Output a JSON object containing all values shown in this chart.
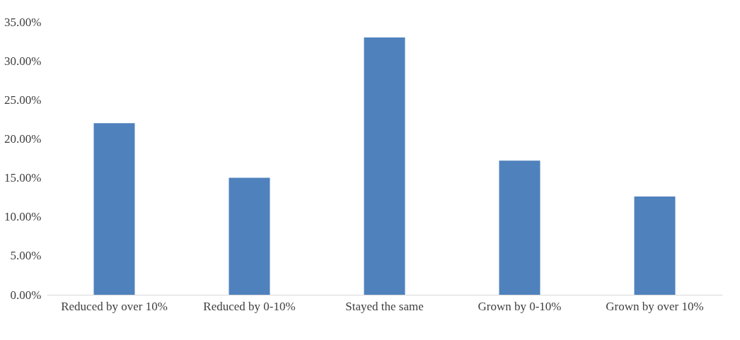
{
  "chart_data": {
    "type": "bar",
    "categories": [
      "Reduced by over 10%",
      "Reduced by 0-10%",
      "Stayed the same",
      "Grown by 0-10%",
      "Grown by over 10%"
    ],
    "values": [
      22.0,
      15.0,
      33.0,
      17.2,
      12.6
    ],
    "color": "#4f81bd",
    "ylim": [
      0,
      35
    ],
    "yticks": [
      {
        "value": 0,
        "label": "0.00%"
      },
      {
        "value": 5,
        "label": "5.00%"
      },
      {
        "value": 10,
        "label": "10.00%"
      },
      {
        "value": 15,
        "label": "15.00%"
      },
      {
        "value": 20,
        "label": "20.00%"
      },
      {
        "value": 25,
        "label": "25.00%"
      },
      {
        "value": 30,
        "label": "30.00%"
      },
      {
        "value": 35,
        "label": "35.00%"
      }
    ],
    "grid": false
  }
}
